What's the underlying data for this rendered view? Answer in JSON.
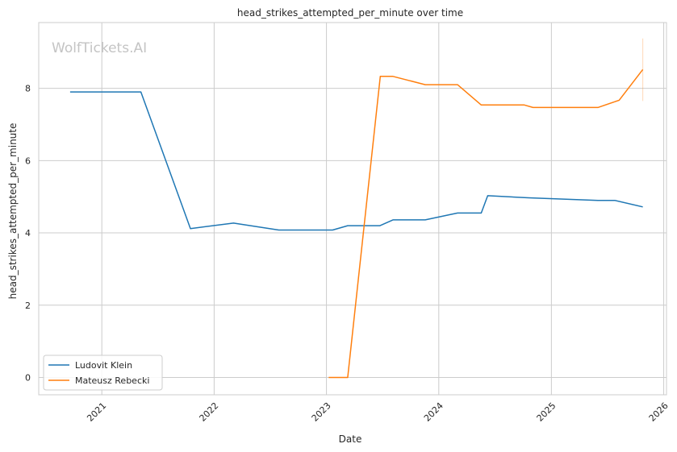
{
  "chart_data": {
    "type": "line",
    "title": "head_strikes_attempted_per_minute over time",
    "xlabel": "Date",
    "ylabel": "head_strikes_attempted_per_minute",
    "watermark": "WolfTickets.AI",
    "x_ticks": [
      "2021",
      "2022",
      "2023",
      "2024",
      "2025",
      "2026"
    ],
    "y_ticks": [
      0,
      2,
      4,
      6,
      8
    ],
    "xlim": [
      "2020-06-10",
      "2026-01-10"
    ],
    "ylim": [
      -0.48,
      9.82
    ],
    "grid": true,
    "legend_position": "lower-left",
    "series": [
      {
        "name": "Ludovit Klein",
        "color": "#1f77b4",
        "points": [
          [
            "2020-09-20",
            7.9
          ],
          [
            "2021-05-08",
            7.9
          ],
          [
            "2021-10-16",
            4.12
          ],
          [
            "2022-03-05",
            4.27
          ],
          [
            "2022-07-30",
            4.08
          ],
          [
            "2023-01-21",
            4.08
          ],
          [
            "2023-03-11",
            4.2
          ],
          [
            "2023-06-24",
            4.2
          ],
          [
            "2023-08-05",
            4.36
          ],
          [
            "2023-11-18",
            4.36
          ],
          [
            "2024-03-02",
            4.55
          ],
          [
            "2024-05-18",
            4.55
          ],
          [
            "2024-06-08",
            5.03
          ],
          [
            "2024-10-19",
            4.97
          ],
          [
            "2025-06-01",
            4.9
          ],
          [
            "2025-07-26",
            4.9
          ],
          [
            "2025-10-25",
            4.72
          ]
        ]
      },
      {
        "name": "Mateusz Rebecki",
        "color": "#ff7f0e",
        "points": [
          [
            "2023-01-08",
            0.0
          ],
          [
            "2023-03-11",
            0.0
          ],
          [
            "2023-06-25",
            8.33
          ],
          [
            "2023-08-05",
            8.33
          ],
          [
            "2023-11-18",
            8.1
          ],
          [
            "2024-03-02",
            8.1
          ],
          [
            "2024-05-18",
            7.54
          ],
          [
            "2024-10-05",
            7.54
          ],
          [
            "2024-11-02",
            7.47
          ],
          [
            "2025-06-01",
            7.47
          ],
          [
            "2025-08-09",
            7.67
          ],
          [
            "2025-10-25",
            8.52
          ]
        ],
        "error_bar": {
          "x": "2025-10-25",
          "low": 7.65,
          "high": 9.38
        }
      }
    ]
  }
}
